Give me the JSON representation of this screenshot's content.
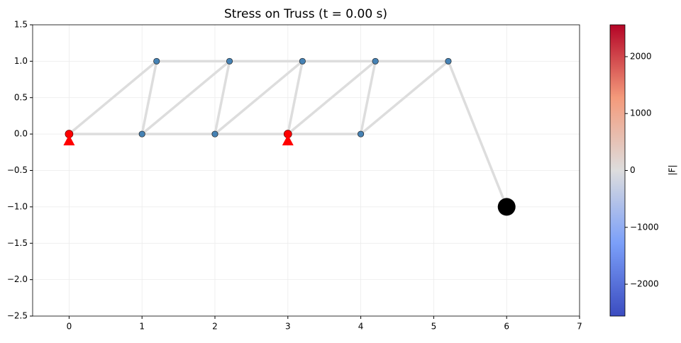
{
  "chart_data": {
    "type": "truss",
    "title": "Stress on Truss (t = 0.00 s)",
    "xlim": [
      -0.5,
      7
    ],
    "ylim": [
      -2.5,
      1.5
    ],
    "xticks": [
      0,
      1,
      2,
      3,
      4,
      5,
      6,
      7
    ],
    "yticks": [
      {
        "value": -2.5,
        "label": "−2.5"
      },
      {
        "value": -2.0,
        "label": "−2.0"
      },
      {
        "value": -1.5,
        "label": "−1.5"
      },
      {
        "value": -1.0,
        "label": "−1.0"
      },
      {
        "value": -0.5,
        "label": "−0.5"
      },
      {
        "value": 0,
        "label": "0.0"
      },
      0.5,
      {
        "value": 1,
        "label": "1.0"
      },
      1.5
    ],
    "grid": true,
    "member_color": "#dddddd",
    "members": [
      {
        "x": [
          0,
          4
        ],
        "y": [
          0,
          0
        ]
      },
      {
        "x": [
          1.2,
          5.2
        ],
        "y": [
          1,
          1
        ]
      },
      {
        "x": [
          0,
          1.2
        ],
        "y": [
          0,
          1
        ]
      },
      {
        "x": [
          1,
          1.2
        ],
        "y": [
          0,
          1
        ]
      },
      {
        "x": [
          1,
          2.2
        ],
        "y": [
          0,
          1
        ]
      },
      {
        "x": [
          2,
          2.2
        ],
        "y": [
          0,
          1
        ]
      },
      {
        "x": [
          2,
          3.2
        ],
        "y": [
          0,
          1
        ]
      },
      {
        "x": [
          3,
          3.2
        ],
        "y": [
          0,
          1
        ]
      },
      {
        "x": [
          3,
          4.2
        ],
        "y": [
          0,
          1
        ]
      },
      {
        "x": [
          4,
          4.2
        ],
        "y": [
          0,
          1
        ]
      },
      {
        "x": [
          4,
          5.2
        ],
        "y": [
          0,
          1
        ]
      },
      {
        "x": [
          5.2,
          6
        ],
        "y": [
          1,
          -1
        ]
      }
    ],
    "series": [
      {
        "marker": "joint",
        "color": "#4682b4",
        "x": [
          1,
          2,
          4,
          1.2,
          2.2,
          3.2,
          4.2,
          5.2
        ],
        "y": [
          0,
          0,
          0,
          1,
          1,
          1,
          1,
          1
        ]
      },
      {
        "marker": "support",
        "color": "#ff0000",
        "x": [
          0,
          3
        ],
        "y": [
          0,
          0
        ]
      },
      {
        "marker": "mass",
        "color": "#000000",
        "x": [
          6
        ],
        "y": [
          -1
        ]
      }
    ],
    "colorbar": {
      "label": "|F|",
      "colormap": "coolwarm",
      "lim": [
        -2560,
        2560
      ],
      "ticks": [
        {
          "value": -2000,
          "label": "−2000"
        },
        {
          "value": -1000,
          "label": "−1000"
        },
        0,
        1000,
        2000
      ]
    }
  }
}
